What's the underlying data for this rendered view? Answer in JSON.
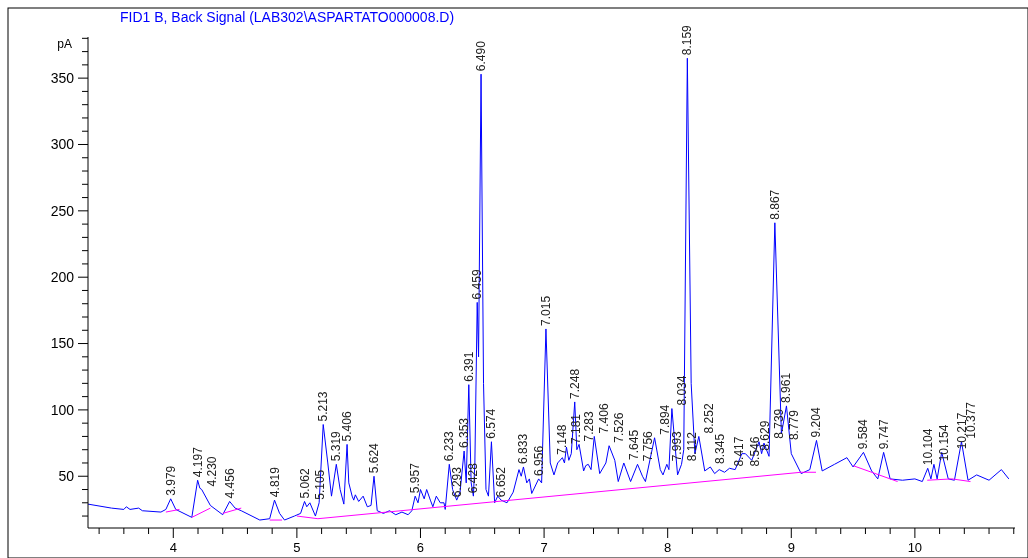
{
  "chart_data": {
    "type": "line",
    "title": "FID1 B, Back Signal (LAB302\\ASPARTATO000008.D)",
    "ylabel": "pA",
    "xlim": [
      3.31,
      10.81
    ],
    "ylim": [
      11,
      381
    ],
    "xticks": [
      {
        "value": 3.4,
        "label": null
      },
      {
        "value": 3.6,
        "label": null
      },
      {
        "value": 3.8,
        "label": null
      },
      4,
      {
        "value": 4.2,
        "label": null
      },
      {
        "value": 4.4,
        "label": null
      },
      {
        "value": 4.6,
        "label": null
      },
      {
        "value": 4.8,
        "label": null
      },
      5,
      {
        "value": 5.2,
        "label": null
      },
      {
        "value": 5.4,
        "label": null
      },
      {
        "value": 5.6,
        "label": null
      },
      {
        "value": 5.8,
        "label": null
      },
      6,
      {
        "value": 6.2,
        "label": null
      },
      {
        "value": 6.4,
        "label": null
      },
      {
        "value": 6.6,
        "label": null
      },
      {
        "value": 6.8,
        "label": null
      },
      7,
      {
        "value": 7.2,
        "label": null
      },
      {
        "value": 7.4,
        "label": null
      },
      {
        "value": 7.6,
        "label": null
      },
      {
        "value": 7.8,
        "label": null
      },
      8,
      {
        "value": 8.2,
        "label": null
      },
      {
        "value": 8.4,
        "label": null
      },
      {
        "value": 8.6,
        "label": null
      },
      {
        "value": 8.8,
        "label": null
      },
      9,
      {
        "value": 9.2,
        "label": null
      },
      {
        "value": 9.4,
        "label": null
      },
      {
        "value": 9.6,
        "label": null
      },
      {
        "value": 9.8,
        "label": null
      },
      10,
      {
        "value": 10.2,
        "label": null
      },
      {
        "value": 10.4,
        "label": null
      },
      {
        "value": 10.6,
        "label": null
      },
      {
        "value": 10.8,
        "label": null
      }
    ],
    "yticks": [
      {
        "value": 20,
        "label": null
      },
      {
        "value": 30,
        "label": null
      },
      {
        "value": 40,
        "label": null
      },
      50,
      {
        "value": 60,
        "label": null
      },
      {
        "value": 70,
        "label": null
      },
      {
        "value": 80,
        "label": null
      },
      {
        "value": 90,
        "label": null
      },
      100,
      {
        "value": 110,
        "label": null
      },
      {
        "value": 120,
        "label": null
      },
      {
        "value": 130,
        "label": null
      },
      {
        "value": 140,
        "label": null
      },
      150,
      {
        "value": 160,
        "label": null
      },
      {
        "value": 170,
        "label": null
      },
      {
        "value": 180,
        "label": null
      },
      {
        "value": 190,
        "label": null
      },
      200,
      {
        "value": 210,
        "label": null
      },
      {
        "value": 220,
        "label": null
      },
      {
        "value": 230,
        "label": null
      },
      {
        "value": 240,
        "label": null
      },
      250,
      {
        "value": 260,
        "label": null
      },
      {
        "value": 270,
        "label": null
      },
      {
        "value": 280,
        "label": null
      },
      {
        "value": 290,
        "label": null
      },
      300,
      {
        "value": 310,
        "label": null
      },
      {
        "value": 320,
        "label": null
      },
      {
        "value": 330,
        "label": null
      },
      {
        "value": 340,
        "label": null
      },
      350,
      {
        "value": 360,
        "label": null
      },
      {
        "value": 370,
        "label": null
      },
      {
        "value": 380,
        "label": null
      }
    ],
    "grid": false,
    "marker": "none",
    "line_style": "solid",
    "series": [
      {
        "color": "#0000ff",
        "x": [
          3.31,
          3.5,
          3.6,
          3.62,
          3.65,
          3.72,
          3.75,
          3.9,
          3.94,
          3.979,
          4.02,
          4.15,
          4.197,
          4.215,
          4.23,
          4.3,
          4.4,
          4.456,
          4.5,
          4.55,
          4.7,
          4.78,
          4.819,
          4.86,
          4.9,
          4.98,
          5.03,
          5.062,
          5.08,
          5.105,
          5.15,
          5.18,
          5.213,
          5.25,
          5.28,
          5.319,
          5.35,
          5.38,
          5.406,
          5.42,
          5.447,
          5.46,
          5.473,
          5.5,
          5.536,
          5.57,
          5.6,
          5.624,
          5.65,
          5.7,
          5.75,
          5.8,
          5.85,
          5.9,
          5.93,
          5.957,
          5.98,
          6.0,
          6.03,
          6.05,
          6.08,
          6.1,
          6.128,
          6.16,
          6.19,
          6.2,
          6.233,
          6.26,
          6.293,
          6.32,
          6.353,
          6.37,
          6.391,
          6.41,
          6.428,
          6.44,
          6.459,
          6.47,
          6.49,
          6.51,
          6.53,
          6.55,
          6.574,
          6.6,
          6.625,
          6.652,
          6.7,
          6.75,
          6.797,
          6.815,
          6.833,
          6.86,
          6.881,
          6.9,
          6.956,
          6.98,
          7.015,
          7.05,
          7.08,
          7.11,
          7.148,
          7.165,
          7.181,
          7.2,
          7.22,
          7.248,
          7.265,
          7.283,
          7.32,
          7.337,
          7.357,
          7.38,
          7.406,
          7.45,
          7.5,
          7.526,
          7.572,
          7.6,
          7.645,
          7.7,
          7.756,
          7.796,
          7.82,
          7.894,
          7.94,
          7.962,
          7.993,
          8.01,
          8.034,
          8.08,
          8.112,
          8.13,
          8.159,
          8.19,
          8.22,
          8.252,
          8.3,
          8.345,
          8.38,
          8.417,
          8.46,
          8.5,
          8.546,
          8.6,
          8.629,
          8.68,
          8.739,
          8.76,
          8.779,
          8.82,
          8.867,
          8.92,
          8.961,
          9.0,
          9.08,
          9.15,
          9.204,
          9.25,
          9.35,
          9.45,
          9.5,
          9.584,
          9.65,
          9.7,
          9.747,
          9.8,
          9.9,
          10.0,
          10.06,
          10.104,
          10.13,
          10.154,
          10.18,
          10.217,
          10.27,
          10.32,
          10.377,
          10.43,
          10.5,
          10.6,
          10.7,
          10.76
        ],
        "values": [
          29,
          26,
          25,
          27,
          25,
          26,
          24,
          23,
          25,
          33,
          25,
          19,
          47,
          41,
          40,
          28,
          21,
          31,
          26,
          24,
          17,
          18,
          32,
          22,
          17,
          20,
          22,
          31,
          27,
          30,
          20,
          30,
          89,
          60,
          35,
          59,
          40,
          29,
          74,
          45,
          35,
          32,
          36,
          31,
          35,
          27,
          28,
          50,
          24,
          22,
          24,
          21,
          23,
          21,
          24,
          35,
          30,
          40,
          33,
          40,
          32,
          27,
          35,
          30,
          30,
          25,
          59,
          40,
          32,
          38,
          69,
          45,
          119,
          45,
          35,
          60,
          181,
          140,
          353,
          120,
          40,
          35,
          76,
          30,
          35,
          32,
          30,
          38,
          55,
          50,
          57,
          45,
          48,
          37,
          48,
          45,
          161,
          60,
          51,
          60,
          64,
          60,
          72,
          62,
          67,
          106,
          70,
          74,
          54,
          58,
          59,
          55,
          80,
          52,
          60,
          73,
          62,
          46,
          60,
          46,
          59,
          50,
          46,
          79,
          55,
          51,
          59,
          55,
          101,
          51,
          59,
          70,
          365,
          120,
          67,
          80,
          54,
          57,
          52,
          55,
          53,
          56,
          55,
          67,
          67,
          62,
          76,
          67,
          75,
          65,
          241,
          82,
          103,
          67,
          52,
          55,
          77,
          54,
          59,
          64,
          57,
          68,
          54,
          48,
          68,
          48,
          47,
          48,
          46,
          56,
          48,
          59,
          48,
          68,
          48,
          47,
          76,
          47,
          51,
          47,
          55,
          48
        ]
      },
      {
        "color": "#ff00ff",
        "x": [
          3.94,
          4.05,
          null,
          4.15,
          4.3,
          null,
          4.4,
          4.55,
          null,
          4.78,
          4.88,
          null,
          5.0,
          5.17,
          9.08,
          9.2,
          null,
          9.5,
          9.86,
          null,
          10.1,
          10.3,
          10.45
        ],
        "values": [
          23,
          25,
          null,
          19,
          26,
          null,
          22,
          26,
          null,
          17,
          17,
          null,
          20,
          18,
          53,
          53,
          null,
          58,
          46,
          null,
          47,
          48,
          46
        ]
      }
    ],
    "annotations": [
      {
        "text": "3.979",
        "x": 3.979,
        "y": 33
      },
      {
        "text": "4.197",
        "x": 4.197,
        "y": 47
      },
      {
        "text": "4.230",
        "x": 4.23,
        "y": 40
      },
      {
        "text": "4.456",
        "x": 4.456,
        "y": 31
      },
      {
        "text": "4.819",
        "x": 4.819,
        "y": 32
      },
      {
        "text": "5.062",
        "x": 5.062,
        "y": 31
      },
      {
        "text": "5.105",
        "x": 5.105,
        "y": 30
      },
      {
        "text": "5.213",
        "x": 5.213,
        "y": 89
      },
      {
        "text": "5.319",
        "x": 5.319,
        "y": 59
      },
      {
        "text": "5.406",
        "x": 5.406,
        "y": 74
      },
      {
        "text": "5.624",
        "x": 5.624,
        "y": 50
      },
      {
        "text": "5.957",
        "x": 5.957,
        "y": 35
      },
      {
        "text": "6.233",
        "x": 6.233,
        "y": 59
      },
      {
        "text": "6.293",
        "x": 6.293,
        "y": 32
      },
      {
        "text": "6.353",
        "x": 6.353,
        "y": 69
      },
      {
        "text": "6.391",
        "x": 6.391,
        "y": 119
      },
      {
        "text": "6.428",
        "x": 6.428,
        "y": 35
      },
      {
        "text": "6.459",
        "x": 6.459,
        "y": 181
      },
      {
        "text": "6.490",
        "x": 6.49,
        "y": 353
      },
      {
        "text": "6.574",
        "x": 6.574,
        "y": 76
      },
      {
        "text": "6.652",
        "x": 6.652,
        "y": 32
      },
      {
        "text": "6.833",
        "x": 6.833,
        "y": 57
      },
      {
        "text": "6.956",
        "x": 6.956,
        "y": 48
      },
      {
        "text": "7.015",
        "x": 7.015,
        "y": 161
      },
      {
        "text": "7.148",
        "x": 7.148,
        "y": 64
      },
      {
        "text": "7.181",
        "x": 7.181,
        "y": 72
      },
      {
        "text": "7.248",
        "x": 7.248,
        "y": 106
      },
      {
        "text": "7.283",
        "x": 7.283,
        "y": 74
      },
      {
        "text": "7.406",
        "x": 7.406,
        "y": 80
      },
      {
        "text": "7.526",
        "x": 7.526,
        "y": 73
      },
      {
        "text": "7.645",
        "x": 7.645,
        "y": 60
      },
      {
        "text": "7.756",
        "x": 7.756,
        "y": 59
      },
      {
        "text": "7.894",
        "x": 7.894,
        "y": 79
      },
      {
        "text": "7.993",
        "x": 7.993,
        "y": 59
      },
      {
        "text": "8.034",
        "x": 8.034,
        "y": 101
      },
      {
        "text": "8.112",
        "x": 8.112,
        "y": 59
      },
      {
        "text": "8.159",
        "x": 8.159,
        "y": 365
      },
      {
        "text": "8.252",
        "x": 8.252,
        "y": 80
      },
      {
        "text": "8.345",
        "x": 8.345,
        "y": 57
      },
      {
        "text": "8.417",
        "x": 8.417,
        "y": 55
      },
      {
        "text": "8.546",
        "x": 8.546,
        "y": 55
      },
      {
        "text": "8.629",
        "x": 8.629,
        "y": 67
      },
      {
        "text": "8.739",
        "x": 8.739,
        "y": 76
      },
      {
        "text": "8.779",
        "x": 8.779,
        "y": 75
      },
      {
        "text": "8.867",
        "x": 8.867,
        "y": 241
      },
      {
        "text": "8.961",
        "x": 8.961,
        "y": 103
      },
      {
        "text": "9.204",
        "x": 9.204,
        "y": 77
      },
      {
        "text": "9.584",
        "x": 9.584,
        "y": 68
      },
      {
        "text": "9.747",
        "x": 9.747,
        "y": 68
      },
      {
        "text": "10.104",
        "x": 10.104,
        "y": 56
      },
      {
        "text": "10.154",
        "x": 10.154,
        "y": 59
      },
      {
        "text": "10.217",
        "x": 10.217,
        "y": 68
      },
      {
        "text": "10.377",
        "x": 10.377,
        "y": 76
      }
    ]
  }
}
